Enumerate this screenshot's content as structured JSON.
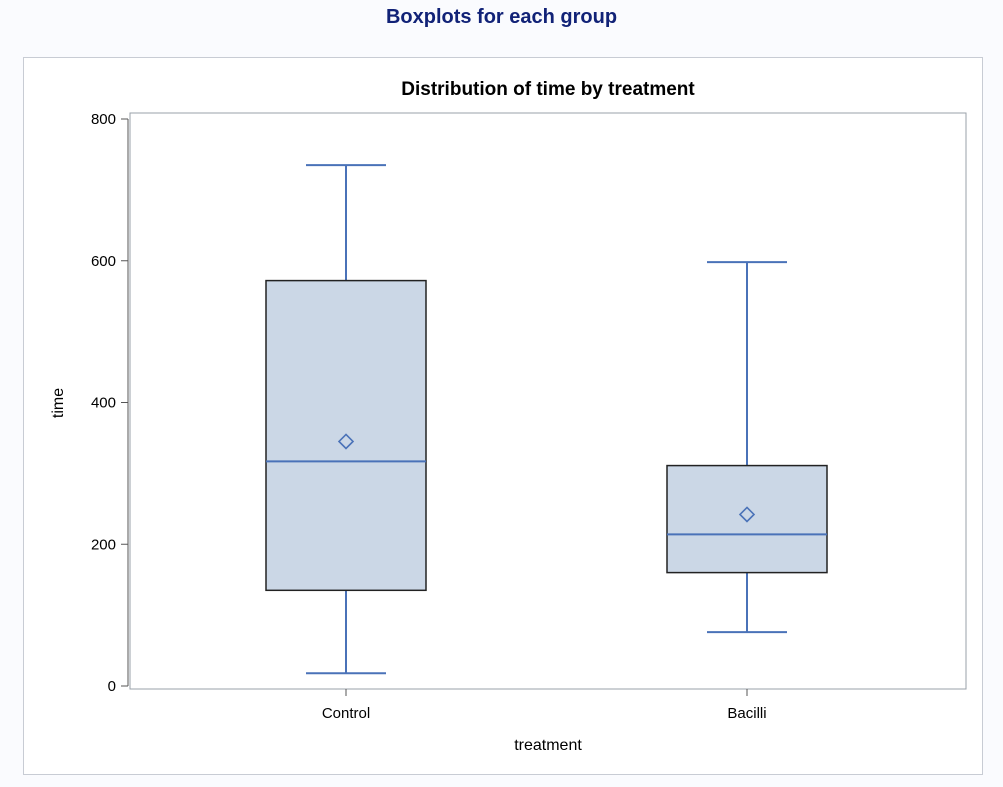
{
  "header": {
    "title": "Boxplots for each group"
  },
  "chart_data": {
    "type": "boxplot",
    "title": "Distribution of time by treatment",
    "xlabel": "treatment",
    "ylabel": "time",
    "ylim": [
      0,
      800
    ],
    "yticks": [
      0,
      200,
      400,
      600,
      800
    ],
    "categories": [
      "Control",
      "Bacilli"
    ],
    "boxes": [
      {
        "category": "Control",
        "min": 18,
        "q1": 135,
        "median": 317,
        "q3": 572,
        "max": 735,
        "mean": 345
      },
      {
        "category": "Bacilli",
        "min": 76,
        "q1": 160,
        "median": 214,
        "q3": 311,
        "max": 598,
        "mean": 242
      }
    ],
    "colors": {
      "box_fill": "#cbd7e6",
      "box_border": "#222222",
      "median_line": "#4a72b8",
      "whisker": "#4a72b8",
      "mean_marker": "#4a72b8",
      "axis": "#555555",
      "plot_border": "#9aa0a8"
    },
    "grid": false,
    "legend": "none"
  }
}
